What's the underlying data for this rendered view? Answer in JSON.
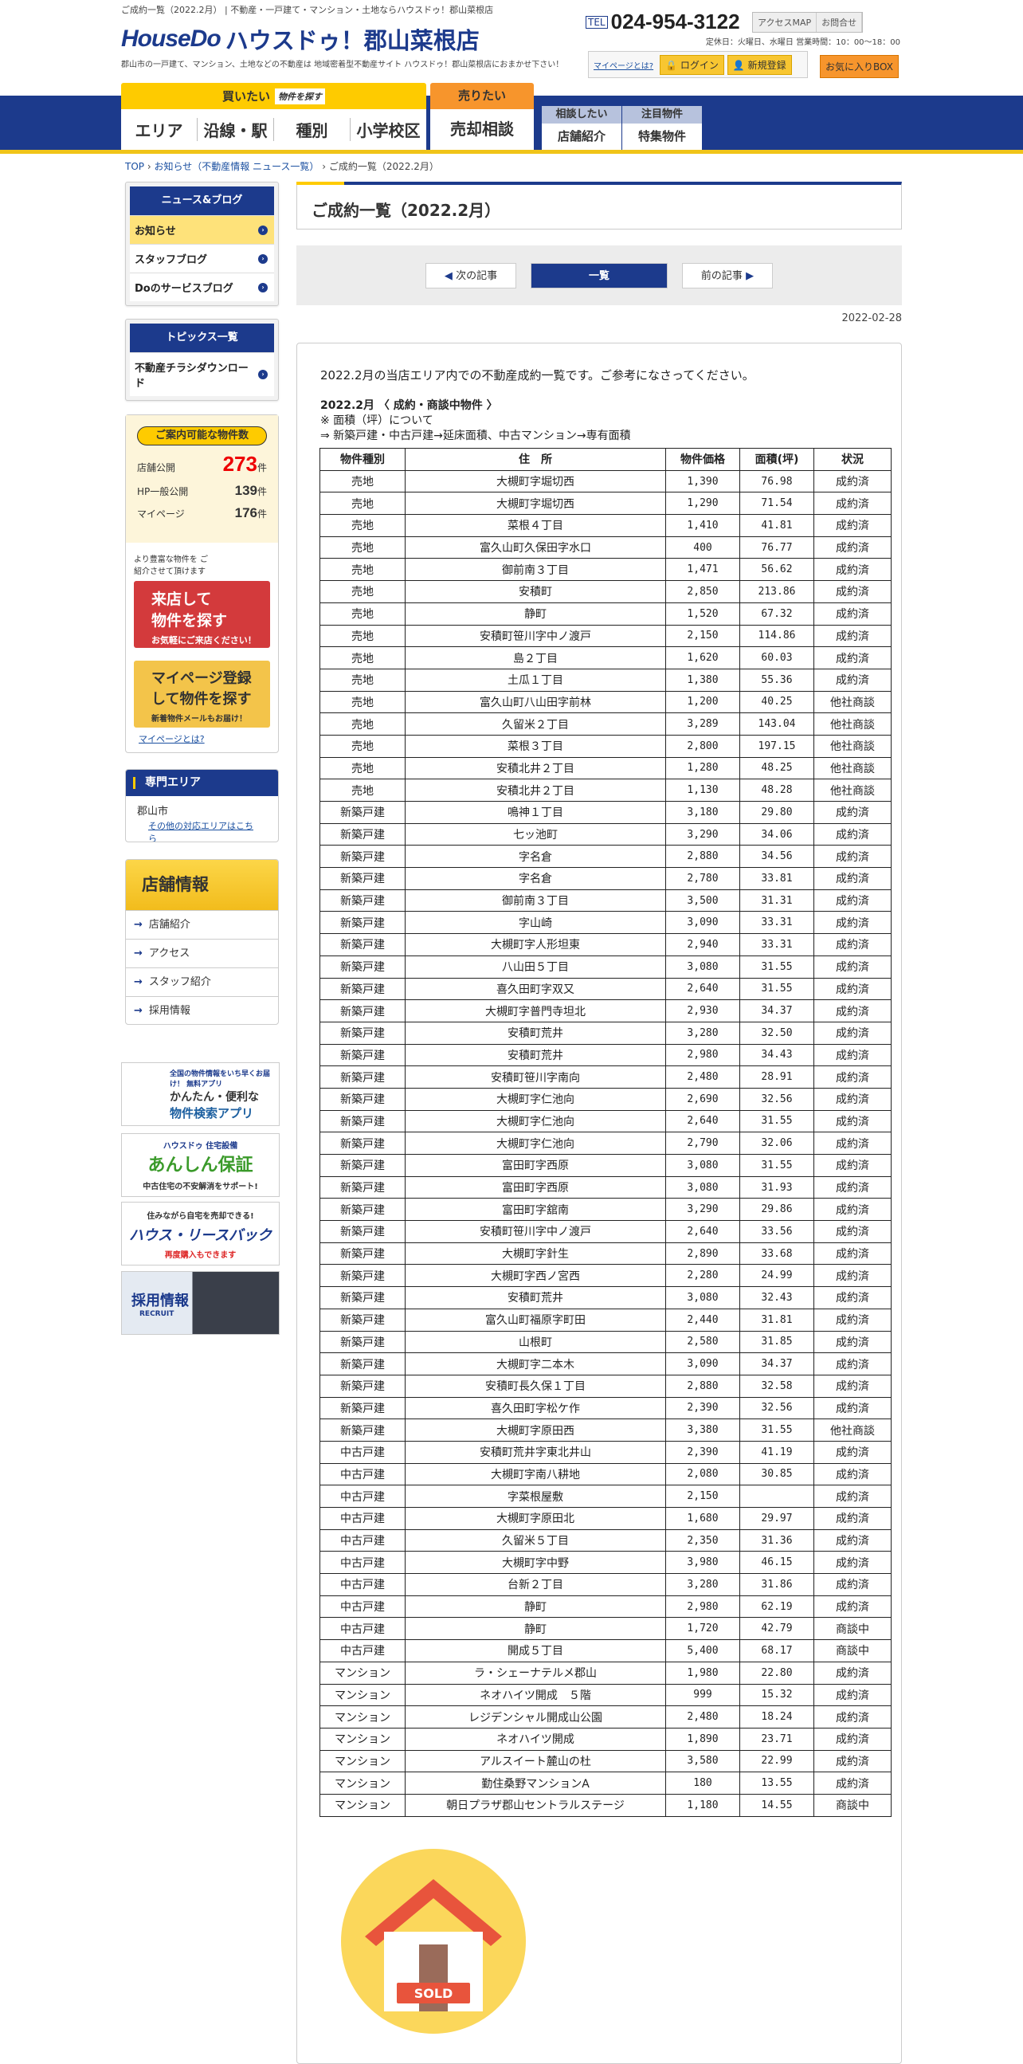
{
  "header": {
    "top_text": "ご成約一覧（2022.2月） | 不動産・一戸建て・マンション・土地ならハウスドゥ！郡山菜根店",
    "logo_mark": "HouseDo",
    "store_name": "ハウスドゥ！郡山菜根店",
    "tagline": "郡山市の一戸建て、マンション、土地などの不動産は 地域密着型不動産サイト ハウスドゥ！郡山菜根店におまかせ下さい！",
    "tel_label": "TEL",
    "tel": "024-954-3122",
    "access": "アクセスMAP",
    "contact": "お問合せ",
    "hours": "定休日：火曜日、水曜日 営業時間：10：00～18：00",
    "mypage_link": "マイページとは?",
    "login": "ログイン",
    "register": "新規登録",
    "favorites": "お気に入りBOX"
  },
  "nav": {
    "buy": "買いたい",
    "buy_tag": "物件を探す",
    "buy_items": [
      "エリア",
      "沿線・駅",
      "種別",
      "小学校区"
    ],
    "sell": "売りたい",
    "sell_item": "売却相談",
    "consult": "相談したい",
    "consult_item": "店舗紹介",
    "featured": "注目物件",
    "featured_item": "特集物件"
  },
  "breadcrumb": [
    "TOP",
    "お知らせ（不動産情報 ニュース一覧）",
    "ご成約一覧（2022.2月）"
  ],
  "sidebar": {
    "news": {
      "title": "ニュース&ブログ",
      "items": [
        "お知らせ",
        "スタッフブログ",
        "Doのサービスブログ"
      ]
    },
    "topics": {
      "title": "トピックス一覧",
      "items": [
        "不動産チラシダウンロード"
      ]
    },
    "count": {
      "title": "ご案内可能な物件数",
      "rows": [
        {
          "label": "店舗公開",
          "value": "273",
          "unit": "件"
        },
        {
          "label": "HP一般公開",
          "value": "139",
          "unit": "件"
        },
        {
          "label": "マイページ",
          "value": "176",
          "unit": "件"
        }
      ],
      "note": "より豊富な物件を ご紹介させて頂けます",
      "visit": [
        "来店して",
        "物件を探す",
        "お気軽にご来店ください！"
      ],
      "mypage": [
        "マイページ登録",
        "して物件を探す",
        "新着物件メールもお届け！"
      ],
      "mypage_link": "マイページとは?"
    },
    "area": {
      "title": "専門エリア",
      "city": "郡山市",
      "link": "その他の対応エリアはこちら"
    },
    "store": {
      "title": "店舗情報",
      "items": [
        "店舗紹介",
        "アクセス",
        "スタッフ紹介",
        "採用情報"
      ]
    },
    "banners": [
      {
        "line1": "全国の物件情報をいち早くお届け！ 無料アプリ",
        "line2": "かんたん・便利な",
        "line3": "物件検索アプリ"
      },
      {
        "line1": "ハウスドゥ 住宅設備",
        "line2": "あんしん保証",
        "line3": "中古住宅の不安解消をサポート!"
      },
      {
        "line1": "住みながら自宅を売却できる!",
        "line2": "ハウス・リースバック",
        "line3": "再度購入もできます"
      },
      {
        "line1": "採用情報",
        "line2": "RECRUIT",
        "line3": ""
      }
    ]
  },
  "main": {
    "title": "ご成約一覧（2022.2月）",
    "next": "次の記事",
    "list": "一覧",
    "prev": "前の記事",
    "date": "2022-02-28",
    "intro": "2022.2月の当店エリア内での不動産成約一覧です。ご参考になさってください。",
    "heading": "2022.2月 〈 成約・商談中物件 〉",
    "note1": "※ 面積（坪）について",
    "note2": "⇒ 新築戸建・中古戸建→延床面積、中古マンション→専有面積",
    "sold_label": "SOLD",
    "table": {
      "headers": [
        "物件種別",
        "住　所",
        "物件価格",
        "面積(坪)",
        "状況"
      ],
      "rows": [
        [
          "売地",
          "大槻町字堀切西",
          "1,390",
          "76.98",
          "成約済"
        ],
        [
          "売地",
          "大槻町字堀切西",
          "1,290",
          "71.54",
          "成約済"
        ],
        [
          "売地",
          "菜根４丁目",
          "1,410",
          "41.81",
          "成約済"
        ],
        [
          "売地",
          "富久山町久保田字水口",
          "400",
          "76.77",
          "成約済"
        ],
        [
          "売地",
          "御前南３丁目",
          "1,471",
          "56.62",
          "成約済"
        ],
        [
          "売地",
          "安積町",
          "2,850",
          "213.86",
          "成約済"
        ],
        [
          "売地",
          "静町",
          "1,520",
          "67.32",
          "成約済"
        ],
        [
          "売地",
          "安積町笹川字中ノ渡戸",
          "2,150",
          "114.86",
          "成約済"
        ],
        [
          "売地",
          "島２丁目",
          "1,620",
          "60.03",
          "成約済"
        ],
        [
          "売地",
          "土瓜１丁目",
          "1,380",
          "55.36",
          "成約済"
        ],
        [
          "売地",
          "富久山町八山田字前林",
          "1,200",
          "40.25",
          "他社商談"
        ],
        [
          "売地",
          "久留米２丁目",
          "3,289",
          "143.04",
          "他社商談"
        ],
        [
          "売地",
          "菜根３丁目",
          "2,800",
          "197.15",
          "他社商談"
        ],
        [
          "売地",
          "安積北井２丁目",
          "1,280",
          "48.25",
          "他社商談"
        ],
        [
          "売地",
          "安積北井２丁目",
          "1,130",
          "48.28",
          "他社商談"
        ],
        [
          "新築戸建",
          "鳴神１丁目",
          "3,180",
          "29.80",
          "成約済"
        ],
        [
          "新築戸建",
          "七ッ池町",
          "3,290",
          "34.06",
          "成約済"
        ],
        [
          "新築戸建",
          "字名倉",
          "2,880",
          "34.56",
          "成約済"
        ],
        [
          "新築戸建",
          "字名倉",
          "2,780",
          "33.81",
          "成約済"
        ],
        [
          "新築戸建",
          "御前南３丁目",
          "3,500",
          "31.31",
          "成約済"
        ],
        [
          "新築戸建",
          "字山崎",
          "3,090",
          "33.31",
          "成約済"
        ],
        [
          "新築戸建",
          "大槻町字人形坦東",
          "2,940",
          "33.31",
          "成約済"
        ],
        [
          "新築戸建",
          "八山田５丁目",
          "3,080",
          "31.55",
          "成約済"
        ],
        [
          "新築戸建",
          "喜久田町字双又",
          "2,640",
          "31.55",
          "成約済"
        ],
        [
          "新築戸建",
          "大槻町字普門寺坦北",
          "2,930",
          "34.37",
          "成約済"
        ],
        [
          "新築戸建",
          "安積町荒井",
          "3,280",
          "32.50",
          "成約済"
        ],
        [
          "新築戸建",
          "安積町荒井",
          "2,980",
          "34.43",
          "成約済"
        ],
        [
          "新築戸建",
          "安積町笹川字南向",
          "2,480",
          "28.91",
          "成約済"
        ],
        [
          "新築戸建",
          "大槻町字仁池向",
          "2,690",
          "32.56",
          "成約済"
        ],
        [
          "新築戸建",
          "大槻町字仁池向",
          "2,640",
          "31.55",
          "成約済"
        ],
        [
          "新築戸建",
          "大槻町字仁池向",
          "2,790",
          "32.06",
          "成約済"
        ],
        [
          "新築戸建",
          "富田町字西原",
          "3,080",
          "31.55",
          "成約済"
        ],
        [
          "新築戸建",
          "富田町字西原",
          "3,080",
          "31.93",
          "成約済"
        ],
        [
          "新築戸建",
          "富田町字舘南",
          "3,290",
          "29.86",
          "成約済"
        ],
        [
          "新築戸建",
          "安積町笹川字中ノ渡戸",
          "2,640",
          "33.56",
          "成約済"
        ],
        [
          "新築戸建",
          "大槻町字針生",
          "2,890",
          "33.68",
          "成約済"
        ],
        [
          "新築戸建",
          "大槻町字西ノ宮西",
          "2,280",
          "24.99",
          "成約済"
        ],
        [
          "新築戸建",
          "安積町荒井",
          "3,080",
          "32.43",
          "成約済"
        ],
        [
          "新築戸建",
          "富久山町福原字町田",
          "2,440",
          "31.81",
          "成約済"
        ],
        [
          "新築戸建",
          "山根町",
          "2,580",
          "31.85",
          "成約済"
        ],
        [
          "新築戸建",
          "大槻町字二本木",
          "3,090",
          "34.37",
          "成約済"
        ],
        [
          "新築戸建",
          "安積町長久保１丁目",
          "2,880",
          "32.58",
          "成約済"
        ],
        [
          "新築戸建",
          "喜久田町字松ケ作",
          "2,390",
          "32.56",
          "成約済"
        ],
        [
          "新築戸建",
          "大槻町字原田西",
          "3,380",
          "31.55",
          "他社商談"
        ],
        [
          "中古戸建",
          "安積町荒井字東北井山",
          "2,390",
          "41.19",
          "成約済"
        ],
        [
          "中古戸建",
          "大槻町字南八耕地",
          "2,080",
          "30.85",
          "成約済"
        ],
        [
          "中古戸建",
          "字菜根屋敷",
          "2,150",
          "",
          "成約済"
        ],
        [
          "中古戸建",
          "大槻町字原田北",
          "1,680",
          "29.97",
          "成約済"
        ],
        [
          "中古戸建",
          "久留米５丁目",
          "2,350",
          "31.36",
          "成約済"
        ],
        [
          "中古戸建",
          "大槻町字中野",
          "3,980",
          "46.15",
          "成約済"
        ],
        [
          "中古戸建",
          "台新２丁目",
          "3,280",
          "31.86",
          "成約済"
        ],
        [
          "中古戸建",
          "静町",
          "2,980",
          "62.19",
          "成約済"
        ],
        [
          "中古戸建",
          "静町",
          "1,720",
          "42.79",
          "商談中"
        ],
        [
          "中古戸建",
          "開成５丁目",
          "5,400",
          "68.17",
          "商談中"
        ],
        [
          "マンション",
          "ラ・シェーナテルメ郡山",
          "1,980",
          "22.80",
          "成約済"
        ],
        [
          "マンション",
          "ネオハイツ開成　５階",
          "999",
          "15.32",
          "成約済"
        ],
        [
          "マンション",
          "レジデンシャル開成山公園",
          "2,480",
          "18.24",
          "成約済"
        ],
        [
          "マンション",
          "ネオハイツ開成",
          "1,890",
          "23.71",
          "成約済"
        ],
        [
          "マンション",
          "アルスイート麓山の杜",
          "3,580",
          "22.99",
          "成約済"
        ],
        [
          "マンション",
          "勤住桑野マンションA",
          "180",
          "13.55",
          "成約済"
        ],
        [
          "マンション",
          "朝日プラザ郡山セントラルステージ",
          "1,180",
          "14.55",
          "商談中"
        ]
      ]
    }
  },
  "colors": {
    "brand_blue": "#1c3a8c",
    "yellow": "#fecb00",
    "orange": "#f7952c",
    "red": "#e00000"
  }
}
